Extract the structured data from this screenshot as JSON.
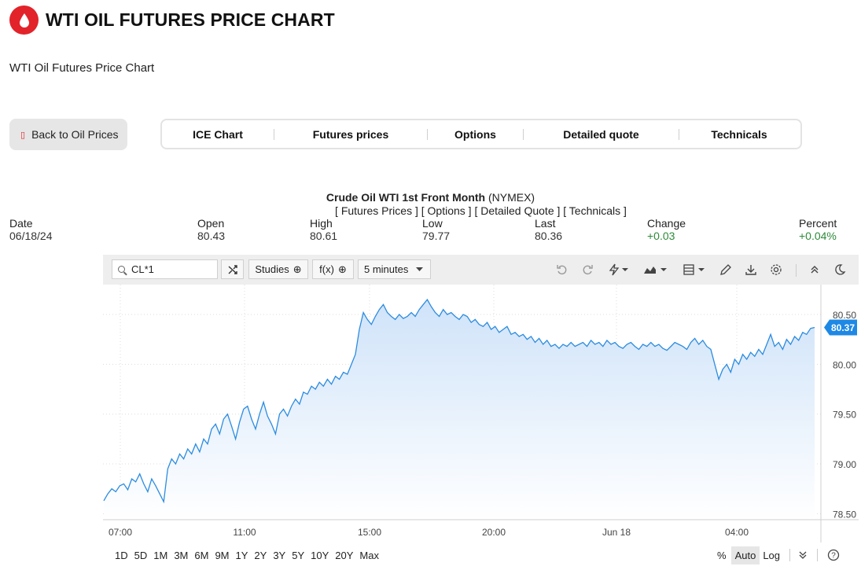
{
  "header": {
    "title": "WTI OIL FUTURES PRICE CHART",
    "subtitle": "WTI Oil Futures Price Chart"
  },
  "nav": {
    "back_label": "Back to Oil Prices",
    "tabs": [
      "ICE Chart",
      "Futures prices",
      "Options",
      "Detailed quote",
      "Technicals"
    ]
  },
  "quote": {
    "name": "Crude Oil WTI 1st Front Month",
    "exchange": "(NYMEX)",
    "links": "[ Futures Prices ] [ Options ] [ Detailed Quote ] [ Technicals ]",
    "stats": {
      "date": {
        "label": "Date",
        "value": "06/18/24"
      },
      "open": {
        "label": "Open",
        "value": "80.43"
      },
      "high": {
        "label": "High",
        "value": "80.61"
      },
      "low": {
        "label": "Low",
        "value": "79.77"
      },
      "last": {
        "label": "Last",
        "value": "80.36"
      },
      "change": {
        "label": "Change",
        "value": "+0.03"
      },
      "percent": {
        "label": "Percent",
        "value": "+0.04%"
      }
    }
  },
  "toolbar": {
    "symbol": "CL*1",
    "studies_label": "Studies",
    "fx_label": "f(x)",
    "interval_label": "5 minutes",
    "icons": [
      "undo-icon",
      "redo-icon",
      "lightning-icon",
      "chart-type-icon",
      "layout-icon",
      "pencil-icon",
      "download-icon",
      "gear-icon",
      "collapse-icon",
      "moon-icon"
    ]
  },
  "ranges": [
    "1D",
    "5D",
    "1M",
    "3M",
    "6M",
    "9M",
    "1Y",
    "2Y",
    "3Y",
    "5Y",
    "10Y",
    "20Y",
    "Max"
  ],
  "scale_options": {
    "percent": "%",
    "auto": "Auto",
    "log": "Log"
  },
  "colors": {
    "brand_red": "#e2232a",
    "line": "#2c8ce0",
    "fill_top": "#cfe3f9",
    "badge": "#1e88e5",
    "positive": "#2e8b3a"
  },
  "chart_data": {
    "type": "area",
    "title": "",
    "xlabel": "",
    "ylabel": "",
    "x_ticks": [
      "07:00",
      "11:00",
      "15:00",
      "20:00",
      "Jun 18",
      "04:00"
    ],
    "y_ticks": [
      78.5,
      79.0,
      79.5,
      80.0,
      80.5
    ],
    "ylim": [
      78.44,
      80.8
    ],
    "last_value": "80.37",
    "grid": true,
    "series": [
      {
        "values": [
          78.63,
          78.7,
          78.75,
          78.72,
          78.78,
          78.8,
          78.74,
          78.85,
          78.82,
          78.9,
          78.8,
          78.72,
          78.85,
          78.78,
          78.7,
          78.62,
          78.95,
          79.05,
          79.0,
          79.1,
          79.05,
          79.15,
          79.1,
          79.2,
          79.12,
          79.25,
          79.2,
          79.35,
          79.4,
          79.3,
          79.45,
          79.5,
          79.38,
          79.25,
          79.42,
          79.55,
          79.58,
          79.45,
          79.35,
          79.5,
          79.62,
          79.48,
          79.4,
          79.3,
          79.5,
          79.55,
          79.48,
          79.58,
          79.65,
          79.6,
          79.72,
          79.7,
          79.78,
          79.75,
          79.82,
          79.78,
          79.85,
          79.8,
          79.88,
          79.85,
          79.92,
          79.9,
          80.0,
          80.1,
          80.35,
          80.52,
          80.45,
          80.4,
          80.48,
          80.55,
          80.6,
          80.52,
          80.48,
          80.45,
          80.5,
          80.46,
          80.48,
          80.52,
          80.48,
          80.55,
          80.6,
          80.65,
          80.58,
          80.52,
          80.48,
          80.55,
          80.5,
          80.52,
          80.48,
          80.45,
          80.5,
          80.48,
          80.42,
          80.45,
          80.4,
          80.38,
          80.42,
          80.35,
          80.38,
          80.32,
          80.35,
          80.38,
          80.3,
          80.32,
          80.28,
          80.3,
          80.25,
          80.28,
          80.22,
          80.26,
          80.2,
          80.24,
          80.18,
          80.2,
          80.16,
          80.2,
          80.18,
          80.22,
          80.18,
          80.2,
          80.22,
          80.18,
          80.24,
          80.2,
          80.22,
          80.18,
          80.24,
          80.2,
          80.22,
          80.18,
          80.16,
          80.2,
          80.22,
          80.18,
          80.15,
          80.2,
          80.18,
          80.22,
          80.18,
          80.2,
          80.16,
          80.14,
          80.18,
          80.22,
          80.2,
          80.18,
          80.15,
          80.22,
          80.26,
          80.2,
          80.24,
          80.18,
          80.15,
          80.0,
          79.85,
          79.95,
          80.0,
          79.92,
          80.05,
          80.0,
          80.1,
          80.05,
          80.12,
          80.08,
          80.15,
          80.1,
          80.2,
          80.3,
          80.18,
          80.22,
          80.15,
          80.25,
          80.2,
          80.28,
          80.24,
          80.32,
          80.3,
          80.36,
          80.37
        ]
      }
    ]
  }
}
